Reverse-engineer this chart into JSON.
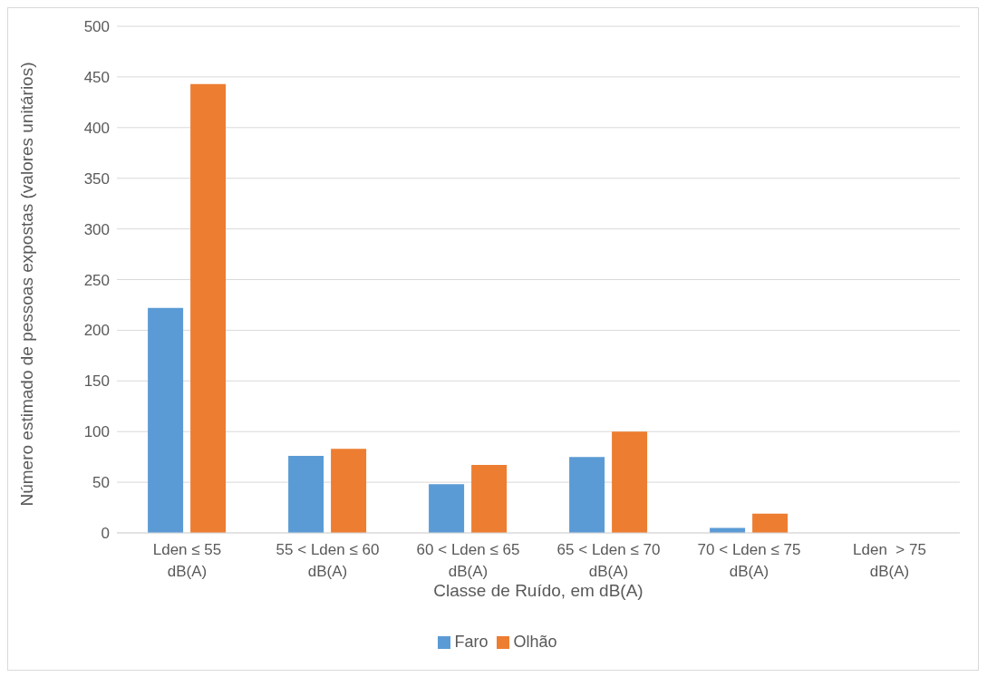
{
  "chart_data": {
    "type": "bar",
    "xlabel": "Classe de Ruído, em dB(A)",
    "ylabel": "Número estimado de pessoas expostas (valores unitários)",
    "categories": [
      "Lden ≤ 55\ndB(A)",
      "55 < Lden ≤ 60\ndB(A)",
      "60 < Lden ≤ 65\ndB(A)",
      "65 < Lden ≤ 70\ndB(A)",
      "70 < Lden ≤ 75\ndB(A)",
      "Lden  > 75\ndB(A)"
    ],
    "series": [
      {
        "name": "Faro",
        "color": "#5b9bd5",
        "values": [
          222,
          76,
          48,
          75,
          5,
          0
        ]
      },
      {
        "name": "Olhão",
        "color": "#ed7d31",
        "values": [
          443,
          83,
          67,
          100,
          19,
          0
        ]
      }
    ],
    "ylim": [
      0,
      500
    ],
    "yticks": [
      0,
      50,
      100,
      150,
      200,
      250,
      300,
      350,
      400,
      450,
      500
    ],
    "grid": "y",
    "legend": "bottom"
  }
}
